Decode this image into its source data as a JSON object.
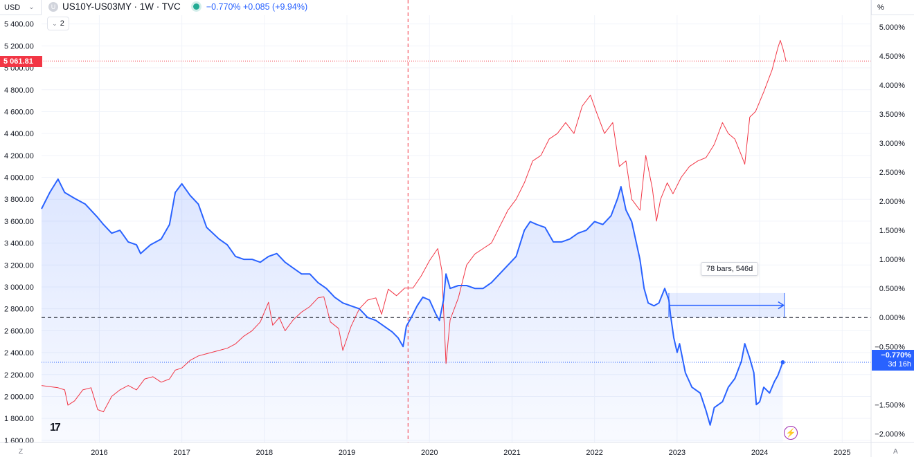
{
  "header": {
    "currency": "USD",
    "symbol": "US10Y-US03MY · 1W · TVC",
    "logo_letter": "U",
    "change": "−0.770%  +0.085 (+9.94%)",
    "collapse_count": "2",
    "right_unit": "%"
  },
  "badges": {
    "left_price": "5 061.81",
    "right_value": "−0.770%",
    "right_countdown": "3d 16h"
  },
  "measure": {
    "label": "78 bars, 546d"
  },
  "footer": {
    "left_label": "Z",
    "right_label": "A",
    "logo_text": "17"
  },
  "colors": {
    "spread_line": "#2962ff",
    "spread_fill": "#2962ff",
    "index_line": "#f23645",
    "grid": "#f0f3fa",
    "crosshair": "#f23645",
    "zero_line": "#131722"
  },
  "icons": {
    "tv_logo": "tradingview-logo-icon",
    "bolt": "lightning-icon",
    "status": "market-open-dot-icon"
  },
  "chart_data": {
    "type": "line",
    "x_axis": {
      "ticks": [
        "2016",
        "2017",
        "2018",
        "2019",
        "2020",
        "2021",
        "2022",
        "2023",
        "2024",
        "2025"
      ],
      "range": [
        2015.3,
        2025.35
      ]
    },
    "left_axis": {
      "ticks": [
        "5 400.00",
        "5 200.00",
        "5 000.00",
        "4 800.00",
        "4 600.00",
        "4 400.00",
        "4 200.00",
        "4 000.00",
        "3 800.00",
        "3 600.00",
        "3 400.00",
        "3 200.00",
        "3 000.00",
        "2 800.00",
        "2 600.00",
        "2 400.00",
        "2 200.00",
        "2 000.00",
        "1 800.00",
        "1 600.00"
      ],
      "values": [
        5400,
        5200,
        5000,
        4800,
        4600,
        4400,
        4200,
        4000,
        3800,
        3600,
        3400,
        3200,
        3000,
        2800,
        2600,
        2400,
        2200,
        2000,
        1800,
        1600
      ],
      "range": [
        1580,
        5480
      ]
    },
    "right_axis": {
      "ticks": [
        "5.000%",
        "4.500%",
        "4.000%",
        "3.500%",
        "3.000%",
        "2.500%",
        "2.000%",
        "1.500%",
        "1.000%",
        "0.500%",
        "0.000%",
        "−0.500%",
        "−1.500%",
        "−2.000%"
      ],
      "values": [
        5.0,
        4.5,
        4.0,
        3.5,
        3.0,
        2.5,
        2.0,
        1.5,
        1.0,
        0.5,
        0.0,
        -0.5,
        -1.5,
        -2.0
      ],
      "range": [
        -2.15,
        5.2
      ]
    },
    "series": [
      {
        "axis": "right",
        "points": [
          [
            2015.3,
            1.87
          ],
          [
            2015.4,
            2.15
          ],
          [
            2015.5,
            2.38
          ],
          [
            2015.58,
            2.15
          ],
          [
            2015.7,
            2.05
          ],
          [
            2015.83,
            1.95
          ],
          [
            2015.98,
            1.72
          ],
          [
            2016.05,
            1.6
          ],
          [
            2016.15,
            1.45
          ],
          [
            2016.25,
            1.5
          ],
          [
            2016.35,
            1.3
          ],
          [
            2016.45,
            1.25
          ],
          [
            2016.5,
            1.1
          ],
          [
            2016.62,
            1.25
          ],
          [
            2016.75,
            1.35
          ],
          [
            2016.85,
            1.6
          ],
          [
            2016.92,
            2.15
          ],
          [
            2017.0,
            2.3
          ],
          [
            2017.1,
            2.1
          ],
          [
            2017.2,
            1.95
          ],
          [
            2017.3,
            1.55
          ],
          [
            2017.45,
            1.35
          ],
          [
            2017.55,
            1.25
          ],
          [
            2017.65,
            1.05
          ],
          [
            2017.75,
            1.0
          ],
          [
            2017.85,
            1.0
          ],
          [
            2017.95,
            0.95
          ],
          [
            2018.05,
            1.05
          ],
          [
            2018.15,
            1.1
          ],
          [
            2018.25,
            0.95
          ],
          [
            2018.35,
            0.85
          ],
          [
            2018.45,
            0.75
          ],
          [
            2018.55,
            0.75
          ],
          [
            2018.65,
            0.6
          ],
          [
            2018.75,
            0.5
          ],
          [
            2018.85,
            0.35
          ],
          [
            2018.95,
            0.25
          ],
          [
            2019.05,
            0.2
          ],
          [
            2019.15,
            0.15
          ],
          [
            2019.25,
            0.0
          ],
          [
            2019.35,
            -0.05
          ],
          [
            2019.45,
            -0.15
          ],
          [
            2019.55,
            -0.25
          ],
          [
            2019.62,
            -0.35
          ],
          [
            2019.68,
            -0.5
          ],
          [
            2019.72,
            -0.15
          ],
          [
            2019.78,
            0.0
          ],
          [
            2019.85,
            0.2
          ],
          [
            2019.92,
            0.35
          ],
          [
            2020.0,
            0.3
          ],
          [
            2020.08,
            0.05
          ],
          [
            2020.12,
            -0.05
          ],
          [
            2020.17,
            0.3
          ],
          [
            2020.2,
            0.75
          ],
          [
            2020.25,
            0.5
          ],
          [
            2020.35,
            0.55
          ],
          [
            2020.45,
            0.55
          ],
          [
            2020.55,
            0.5
          ],
          [
            2020.65,
            0.5
          ],
          [
            2020.75,
            0.6
          ],
          [
            2020.85,
            0.75
          ],
          [
            2020.95,
            0.9
          ],
          [
            2021.05,
            1.05
          ],
          [
            2021.15,
            1.5
          ],
          [
            2021.22,
            1.65
          ],
          [
            2021.3,
            1.6
          ],
          [
            2021.4,
            1.55
          ],
          [
            2021.5,
            1.3
          ],
          [
            2021.6,
            1.3
          ],
          [
            2021.7,
            1.35
          ],
          [
            2021.8,
            1.45
          ],
          [
            2021.9,
            1.5
          ],
          [
            2022.0,
            1.65
          ],
          [
            2022.1,
            1.6
          ],
          [
            2022.2,
            1.75
          ],
          [
            2022.28,
            2.05
          ],
          [
            2022.32,
            2.25
          ],
          [
            2022.38,
            1.85
          ],
          [
            2022.45,
            1.65
          ],
          [
            2022.55,
            1.0
          ],
          [
            2022.6,
            0.5
          ],
          [
            2022.65,
            0.25
          ],
          [
            2022.72,
            0.2
          ],
          [
            2022.78,
            0.25
          ],
          [
            2022.85,
            0.5
          ],
          [
            2022.9,
            0.3
          ],
          [
            2022.92,
            0.05
          ],
          [
            2022.96,
            -0.35
          ],
          [
            2023.0,
            -0.6
          ],
          [
            2023.03,
            -0.45
          ],
          [
            2023.1,
            -0.95
          ],
          [
            2023.18,
            -1.2
          ],
          [
            2023.28,
            -1.3
          ],
          [
            2023.35,
            -1.6
          ],
          [
            2023.4,
            -1.85
          ],
          [
            2023.45,
            -1.55
          ],
          [
            2023.55,
            -1.45
          ],
          [
            2023.62,
            -1.2
          ],
          [
            2023.7,
            -1.05
          ],
          [
            2023.78,
            -0.75
          ],
          [
            2023.82,
            -0.45
          ],
          [
            2023.88,
            -0.7
          ],
          [
            2023.93,
            -0.95
          ],
          [
            2023.96,
            -1.5
          ],
          [
            2024.0,
            -1.45
          ],
          [
            2024.05,
            -1.2
          ],
          [
            2024.12,
            -1.3
          ],
          [
            2024.18,
            -1.1
          ],
          [
            2024.22,
            -1.0
          ],
          [
            2024.28,
            -0.77
          ]
        ]
      },
      {
        "axis": "left",
        "points": [
          [
            2015.3,
            2100
          ],
          [
            2015.4,
            2090
          ],
          [
            2015.5,
            2080
          ],
          [
            2015.58,
            2060
          ],
          [
            2015.62,
            1920
          ],
          [
            2015.7,
            1960
          ],
          [
            2015.8,
            2060
          ],
          [
            2015.9,
            2080
          ],
          [
            2015.98,
            1880
          ],
          [
            2016.05,
            1860
          ],
          [
            2016.15,
            2000
          ],
          [
            2016.25,
            2060
          ],
          [
            2016.35,
            2100
          ],
          [
            2016.45,
            2060
          ],
          [
            2016.55,
            2160
          ],
          [
            2016.65,
            2180
          ],
          [
            2016.75,
            2130
          ],
          [
            2016.85,
            2160
          ],
          [
            2016.92,
            2240
          ],
          [
            2017.0,
            2260
          ],
          [
            2017.1,
            2330
          ],
          [
            2017.2,
            2370
          ],
          [
            2017.3,
            2390
          ],
          [
            2017.45,
            2420
          ],
          [
            2017.55,
            2440
          ],
          [
            2017.65,
            2480
          ],
          [
            2017.75,
            2550
          ],
          [
            2017.85,
            2600
          ],
          [
            2017.95,
            2680
          ],
          [
            2018.05,
            2860
          ],
          [
            2018.1,
            2650
          ],
          [
            2018.18,
            2720
          ],
          [
            2018.25,
            2600
          ],
          [
            2018.35,
            2700
          ],
          [
            2018.45,
            2770
          ],
          [
            2018.55,
            2820
          ],
          [
            2018.65,
            2900
          ],
          [
            2018.72,
            2910
          ],
          [
            2018.8,
            2680
          ],
          [
            2018.9,
            2620
          ],
          [
            2018.95,
            2420
          ],
          [
            2019.05,
            2640
          ],
          [
            2019.15,
            2800
          ],
          [
            2019.25,
            2880
          ],
          [
            2019.35,
            2900
          ],
          [
            2019.42,
            2750
          ],
          [
            2019.5,
            2980
          ],
          [
            2019.6,
            2920
          ],
          [
            2019.7,
            2990
          ],
          [
            2019.8,
            2990
          ],
          [
            2019.9,
            3100
          ],
          [
            2020.0,
            3240
          ],
          [
            2020.1,
            3350
          ],
          [
            2020.15,
            3150
          ],
          [
            2020.2,
            2300
          ],
          [
            2020.25,
            2700
          ],
          [
            2020.35,
            2900
          ],
          [
            2020.45,
            3200
          ],
          [
            2020.55,
            3300
          ],
          [
            2020.65,
            3350
          ],
          [
            2020.75,
            3400
          ],
          [
            2020.85,
            3550
          ],
          [
            2020.95,
            3700
          ],
          [
            2021.05,
            3800
          ],
          [
            2021.15,
            3950
          ],
          [
            2021.25,
            4150
          ],
          [
            2021.35,
            4200
          ],
          [
            2021.45,
            4350
          ],
          [
            2021.55,
            4400
          ],
          [
            2021.65,
            4500
          ],
          [
            2021.75,
            4400
          ],
          [
            2021.85,
            4650
          ],
          [
            2021.95,
            4750
          ],
          [
            2022.02,
            4600
          ],
          [
            2022.12,
            4400
          ],
          [
            2022.22,
            4500
          ],
          [
            2022.3,
            4100
          ],
          [
            2022.38,
            4150
          ],
          [
            2022.45,
            3800
          ],
          [
            2022.55,
            3700
          ],
          [
            2022.62,
            4200
          ],
          [
            2022.7,
            3900
          ],
          [
            2022.75,
            3600
          ],
          [
            2022.8,
            3800
          ],
          [
            2022.88,
            3950
          ],
          [
            2022.95,
            3850
          ],
          [
            2023.05,
            4000
          ],
          [
            2023.15,
            4100
          ],
          [
            2023.25,
            4150
          ],
          [
            2023.35,
            4180
          ],
          [
            2023.45,
            4300
          ],
          [
            2023.55,
            4500
          ],
          [
            2023.62,
            4400
          ],
          [
            2023.7,
            4350
          ],
          [
            2023.78,
            4200
          ],
          [
            2023.82,
            4120
          ],
          [
            2023.88,
            4550
          ],
          [
            2023.95,
            4600
          ],
          [
            2024.05,
            4780
          ],
          [
            2024.15,
            4980
          ],
          [
            2024.22,
            5180
          ],
          [
            2024.25,
            5250
          ],
          [
            2024.28,
            5180
          ],
          [
            2024.32,
            5061
          ]
        ]
      }
    ],
    "reference": {
      "zero_line_right": 0.0,
      "last_value_right": -0.77,
      "last_price_left": 5061.81,
      "crosshair_x": 2019.74
    },
    "measure_range": {
      "x_start": 2022.9,
      "x_end": 2024.3,
      "y_top_right": 0.42,
      "y_bottom_right": 0.0
    }
  }
}
